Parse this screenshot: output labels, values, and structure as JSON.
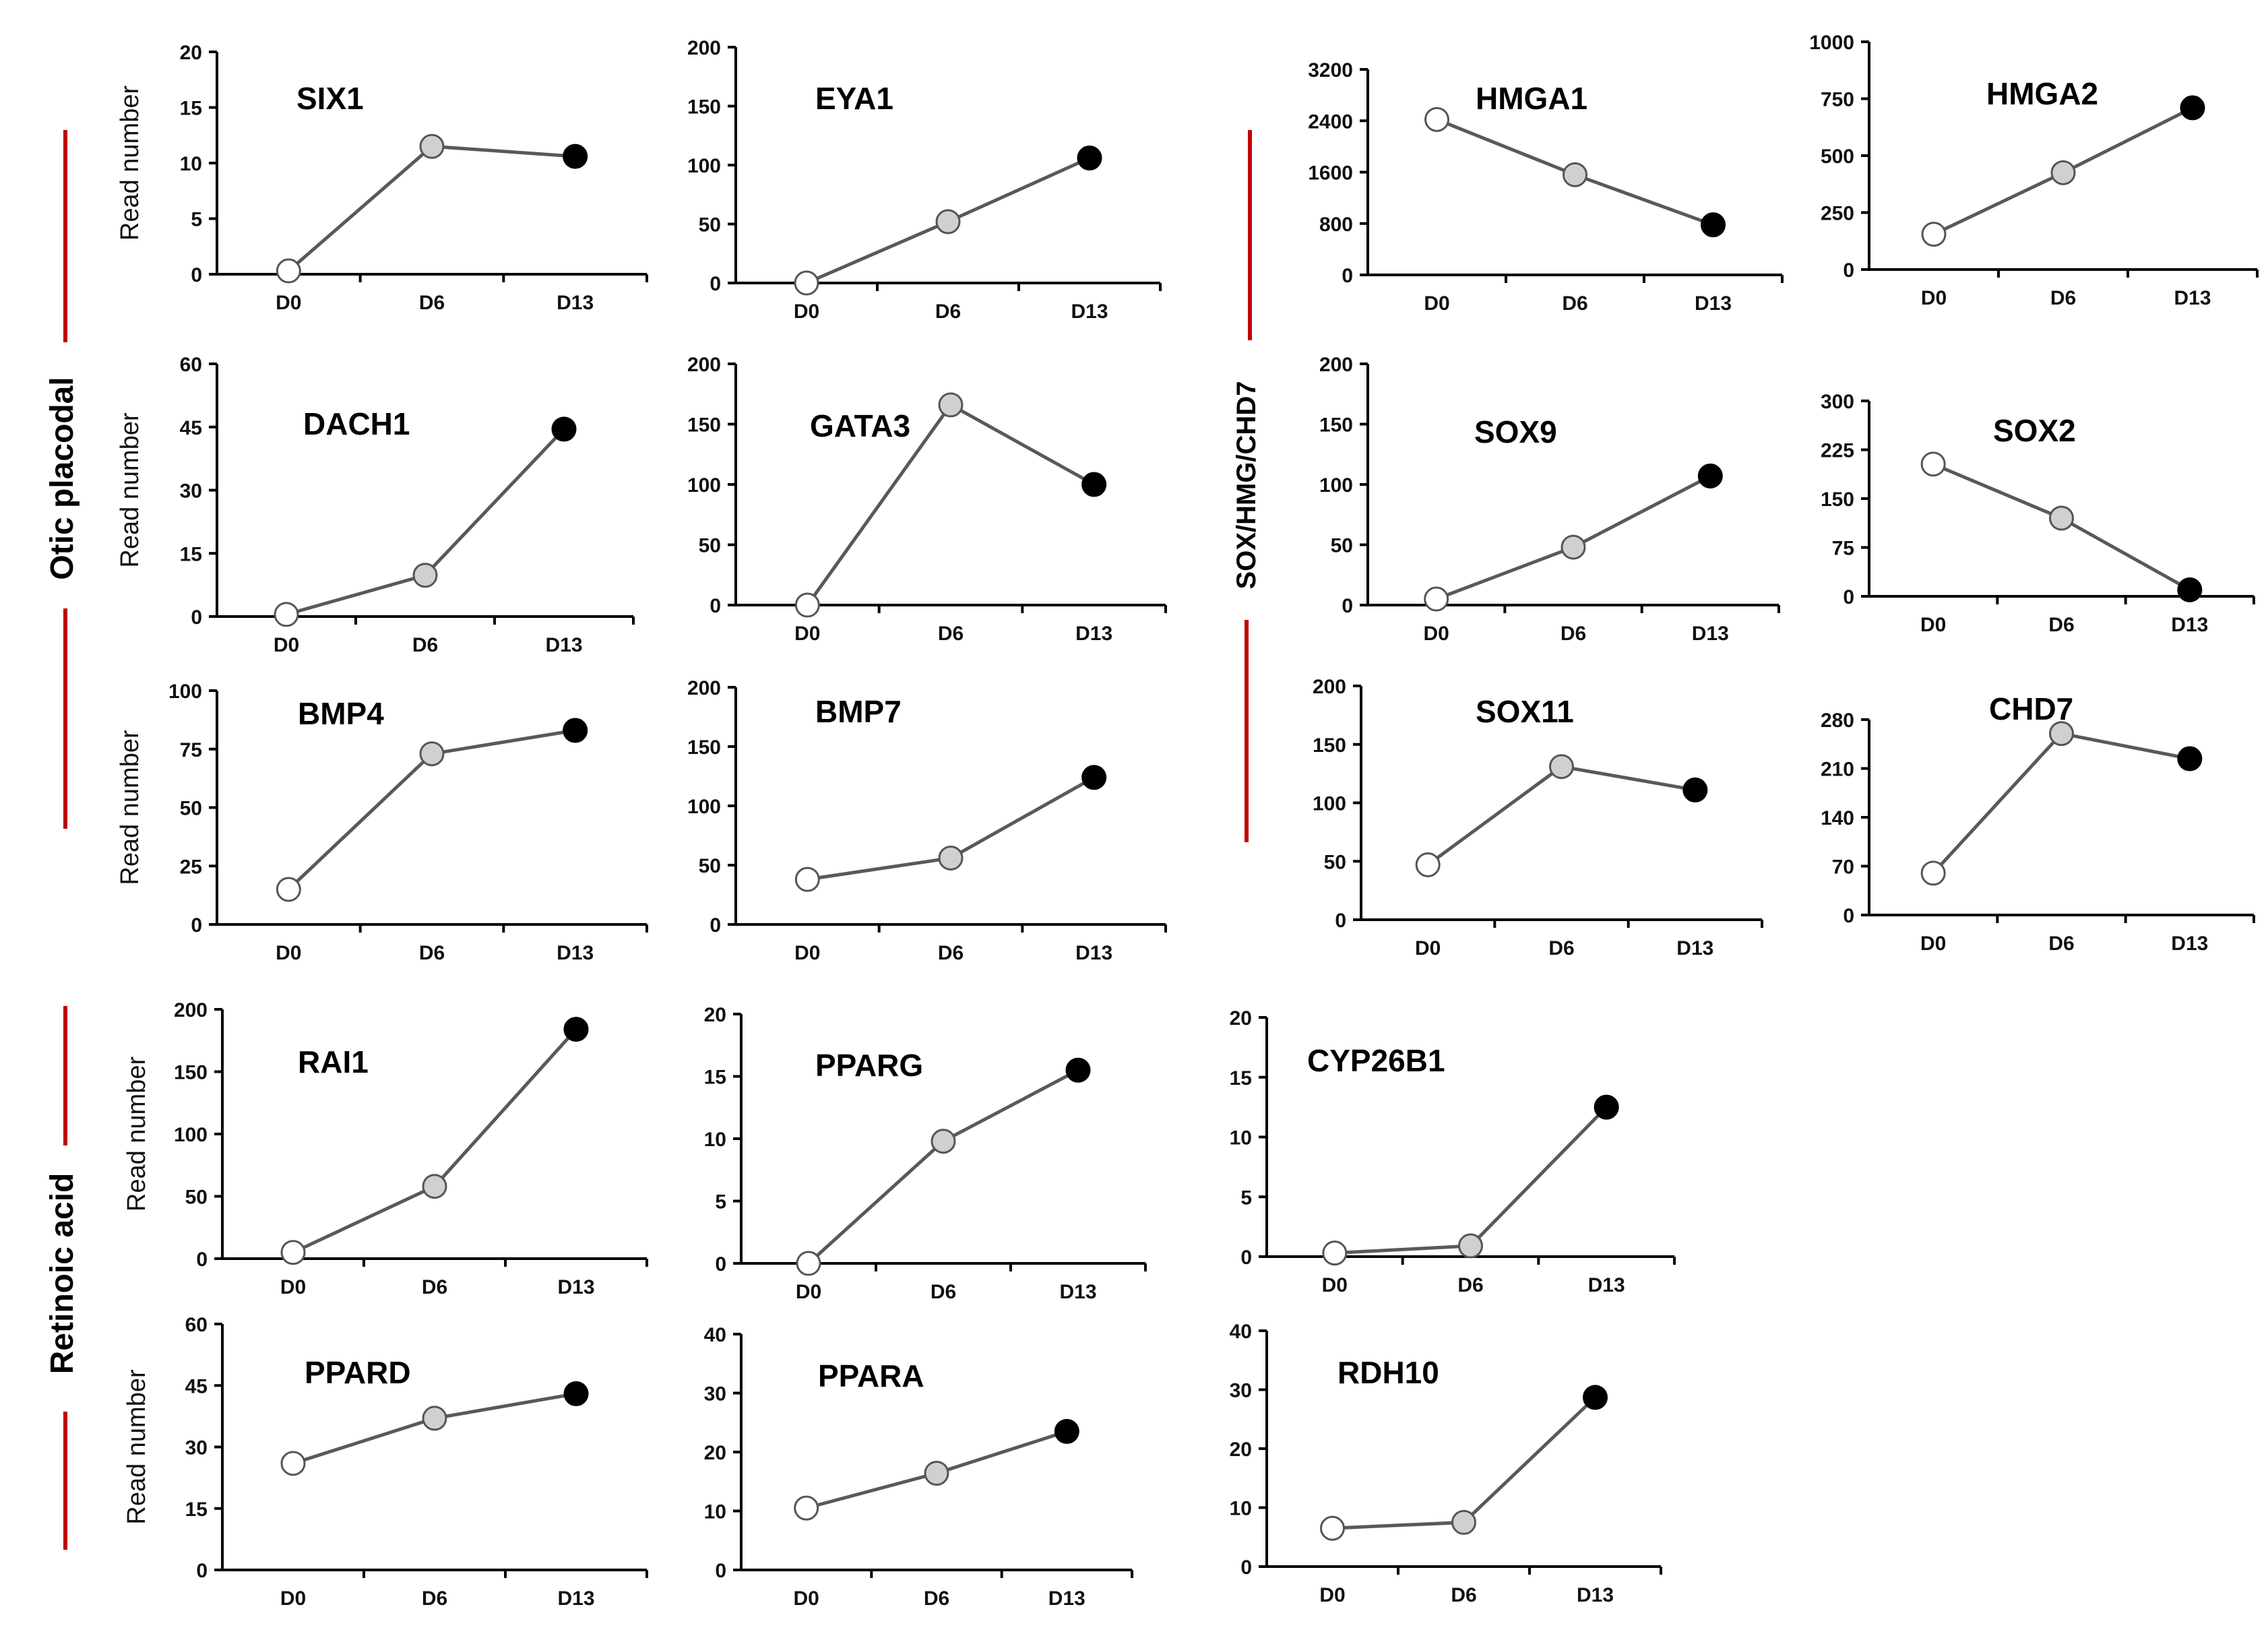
{
  "figure": {
    "y_axis_title": "Read number",
    "colors": {
      "line": "#595959",
      "axis": "#000000",
      "d0_fill": "#ffffff",
      "d6_fill": "#d0d0d0",
      "d13_fill": "#000000",
      "marker_stroke": "#555555",
      "group_bar": "#c00000"
    },
    "groups": [
      {
        "id": "otic",
        "label": "Otic placodal"
      },
      {
        "id": "sox",
        "label": "SOX/HMG/CHD7"
      },
      {
        "id": "ra",
        "label": "Retinoic acid"
      }
    ]
  },
  "chart_data": [
    {
      "type": "line",
      "title": "SIX1",
      "categories": [
        "D0",
        "D6",
        "D13"
      ],
      "values": [
        0.3,
        11.5,
        10.6
      ],
      "ylim": [
        0,
        20
      ],
      "yticks": [
        0,
        5,
        10,
        15,
        20
      ],
      "xlabel": "",
      "ylabel": "Read number"
    },
    {
      "type": "line",
      "title": "EYA1",
      "categories": [
        "D0",
        "D6",
        "D13"
      ],
      "values": [
        0,
        52,
        106
      ],
      "ylim": [
        0,
        200
      ],
      "yticks": [
        0,
        50,
        100,
        150,
        200
      ],
      "xlabel": "",
      "ylabel": ""
    },
    {
      "type": "line",
      "title": "HMGA1",
      "categories": [
        "D0",
        "D6",
        "D13"
      ],
      "values": [
        2420,
        1560,
        780
      ],
      "ylim": [
        0,
        3200
      ],
      "yticks": [
        0,
        800,
        1600,
        2400,
        3200
      ],
      "xlabel": "",
      "ylabel": ""
    },
    {
      "type": "line",
      "title": "HMGA2",
      "categories": [
        "D0",
        "D6",
        "D13"
      ],
      "values": [
        155,
        425,
        710
      ],
      "ylim": [
        0,
        1000
      ],
      "yticks": [
        0,
        250,
        500,
        750,
        1000
      ],
      "xlabel": "",
      "ylabel": ""
    },
    {
      "type": "line",
      "title": "DACH1",
      "categories": [
        "D0",
        "D6",
        "D13"
      ],
      "values": [
        0.5,
        9.8,
        44.5
      ],
      "ylim": [
        0,
        60
      ],
      "yticks": [
        0,
        15,
        30,
        45,
        60
      ],
      "xlabel": "",
      "ylabel": "Read number"
    },
    {
      "type": "line",
      "title": "GATA3",
      "categories": [
        "D0",
        "D6",
        "D13"
      ],
      "values": [
        0,
        166,
        100
      ],
      "ylim": [
        0,
        200
      ],
      "yticks": [
        0,
        50,
        100,
        150,
        200
      ],
      "xlabel": "",
      "ylabel": ""
    },
    {
      "type": "line",
      "title": "SOX9",
      "categories": [
        "D0",
        "D6",
        "D13"
      ],
      "values": [
        5,
        48,
        107
      ],
      "ylim": [
        0,
        200
      ],
      "yticks": [
        0,
        50,
        100,
        150,
        200
      ],
      "xlabel": "",
      "ylabel": ""
    },
    {
      "type": "line",
      "title": "SOX2",
      "categories": [
        "D0",
        "D6",
        "D13"
      ],
      "values": [
        203,
        120,
        10
      ],
      "ylim": [
        0,
        300
      ],
      "yticks": [
        0,
        75,
        150,
        225,
        300
      ],
      "xlabel": "",
      "ylabel": ""
    },
    {
      "type": "line",
      "title": "BMP4",
      "categories": [
        "D0",
        "D6",
        "D13"
      ],
      "values": [
        15,
        73,
        83
      ],
      "ylim": [
        0,
        100
      ],
      "yticks": [
        0,
        25,
        50,
        75,
        100
      ],
      "xlabel": "",
      "ylabel": "Read number"
    },
    {
      "type": "line",
      "title": "BMP7",
      "categories": [
        "D0",
        "D6",
        "D13"
      ],
      "values": [
        38,
        56,
        124
      ],
      "ylim": [
        0,
        200
      ],
      "yticks": [
        0,
        50,
        100,
        150,
        200
      ],
      "xlabel": "",
      "ylabel": ""
    },
    {
      "type": "line",
      "title": "SOX11",
      "categories": [
        "D0",
        "D6",
        "D13"
      ],
      "values": [
        47,
        131,
        111
      ],
      "ylim": [
        0,
        200
      ],
      "yticks": [
        0,
        50,
        100,
        150,
        200
      ],
      "xlabel": "",
      "ylabel": ""
    },
    {
      "type": "line",
      "title": "CHD7",
      "categories": [
        "D0",
        "D6",
        "D13"
      ],
      "values": [
        60,
        260,
        224
      ],
      "ylim": [
        0,
        280
      ],
      "yticks": [
        0,
        70,
        140,
        210,
        280
      ],
      "xlabel": "",
      "ylabel": ""
    },
    {
      "type": "line",
      "title": "RAI1",
      "categories": [
        "D0",
        "D6",
        "D13"
      ],
      "values": [
        5,
        58,
        184
      ],
      "ylim": [
        0,
        200
      ],
      "yticks": [
        0,
        50,
        100,
        150,
        200
      ],
      "xlabel": "",
      "ylabel": "Read number"
    },
    {
      "type": "line",
      "title": "PPARG",
      "categories": [
        "D0",
        "D6",
        "D13"
      ],
      "values": [
        0,
        9.8,
        15.5
      ],
      "ylim": [
        0,
        20
      ],
      "yticks": [
        0,
        5,
        10,
        15,
        20
      ],
      "xlabel": "",
      "ylabel": ""
    },
    {
      "type": "line",
      "title": "CYP26B1",
      "categories": [
        "D0",
        "D6",
        "D13"
      ],
      "values": [
        0.3,
        0.9,
        12.5
      ],
      "ylim": [
        0,
        20
      ],
      "yticks": [
        0,
        5,
        10,
        15,
        20
      ],
      "xlabel": "",
      "ylabel": ""
    },
    {
      "type": "line",
      "title": "PPARD",
      "categories": [
        "D0",
        "D6",
        "D13"
      ],
      "values": [
        26,
        37,
        43
      ],
      "ylim": [
        0,
        60
      ],
      "yticks": [
        0,
        15,
        30,
        45,
        60
      ],
      "xlabel": "",
      "ylabel": "Read number"
    },
    {
      "type": "line",
      "title": "PPARA",
      "categories": [
        "D0",
        "D6",
        "D13"
      ],
      "values": [
        10.5,
        16.4,
        23.5
      ],
      "ylim": [
        0,
        40
      ],
      "yticks": [
        0,
        10,
        20,
        30,
        40
      ],
      "xlabel": "",
      "ylabel": ""
    },
    {
      "type": "line",
      "title": "RDH10",
      "categories": [
        "D0",
        "D6",
        "D13"
      ],
      "values": [
        6.5,
        7.5,
        28.7
      ],
      "ylim": [
        0,
        40
      ],
      "yticks": [
        0,
        10,
        20,
        30,
        40
      ],
      "xlabel": "",
      "ylabel": ""
    }
  ]
}
